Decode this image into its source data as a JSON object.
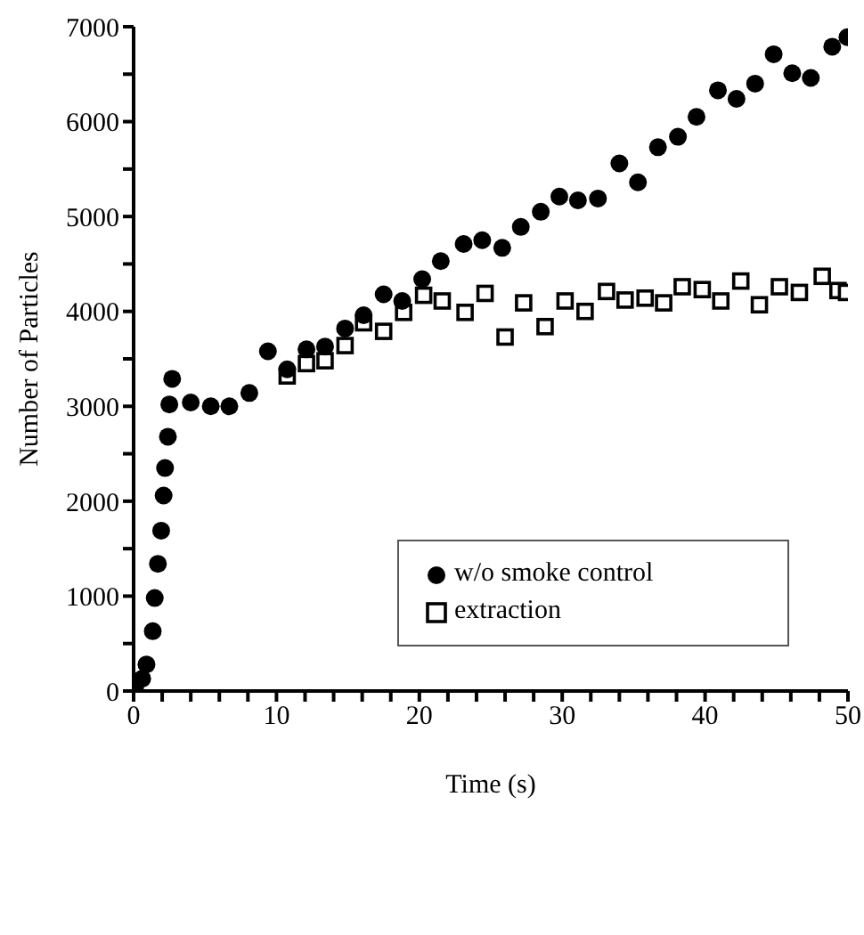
{
  "chart_data": {
    "type": "scatter",
    "xlabel": "Time (s)",
    "ylabel": "Number of Particles",
    "xlim": [
      0,
      50
    ],
    "ylim": [
      0,
      7000
    ],
    "xticks": [
      0,
      {
        "value": 2,
        "label": null
      },
      {
        "value": 4,
        "label": null
      },
      {
        "value": 6,
        "label": null
      },
      {
        "value": 8,
        "label": null
      },
      10,
      {
        "value": 12,
        "label": null
      },
      {
        "value": 14,
        "label": null
      },
      {
        "value": 16,
        "label": null
      },
      {
        "value": 18,
        "label": null
      },
      20,
      {
        "value": 22,
        "label": null
      },
      {
        "value": 24,
        "label": null
      },
      {
        "value": 26,
        "label": null
      },
      {
        "value": 28,
        "label": null
      },
      30,
      {
        "value": 32,
        "label": null
      },
      {
        "value": 34,
        "label": null
      },
      {
        "value": 36,
        "label": null
      },
      {
        "value": 38,
        "label": null
      },
      40,
      {
        "value": 42,
        "label": null
      },
      {
        "value": 44,
        "label": null
      },
      {
        "value": 46,
        "label": null
      },
      {
        "value": 48,
        "label": null
      },
      50
    ],
    "yticks": [
      0,
      {
        "value": 500,
        "label": null
      },
      1000,
      {
        "value": 1500,
        "label": null
      },
      2000,
      {
        "value": 2500,
        "label": null
      },
      3000,
      {
        "value": 3500,
        "label": null
      },
      4000,
      {
        "value": 4500,
        "label": null
      },
      5000,
      {
        "value": 5500,
        "label": null
      },
      6000,
      {
        "value": 6500,
        "label": null
      },
      7000
    ],
    "grid": false,
    "legend": "right",
    "series": [
      {
        "name": "w/o smoke control",
        "color": "#000000",
        "marker": "circle",
        "x": [
          0.1,
          0.6,
          0.9,
          1.34,
          1.48,
          1.7,
          1.93,
          2.1,
          2.2,
          2.4,
          2.5,
          2.7,
          4.0,
          5.4,
          6.7,
          8.1,
          9.4,
          10.75,
          12.1,
          13.4,
          14.8,
          16.1,
          17.5,
          18.8,
          20.2,
          21.5,
          23.1,
          24.4,
          25.8,
          27.1,
          28.5,
          29.8,
          31.1,
          32.5,
          34.0,
          35.3,
          36.7,
          38.1,
          39.4,
          40.9,
          42.2,
          43.5,
          44.8,
          46.1,
          47.4,
          48.9,
          49.96
        ],
        "values": [
          40,
          130,
          280,
          630,
          980,
          1340,
          1690,
          2060,
          2350,
          2680,
          3020,
          3290,
          3040,
          3000,
          3000,
          3140,
          3580,
          3390,
          3600,
          3630,
          3820,
          3960,
          4180,
          4110,
          4340,
          4530,
          4710,
          4750,
          4670,
          4890,
          5050,
          5210,
          5170,
          5190,
          5560,
          5360,
          5730,
          5840,
          6050,
          6330,
          6240,
          6400,
          6710,
          6510,
          6460,
          6790,
          6890
        ]
      },
      {
        "name": "extraction",
        "color": "#000000",
        "marker": "square",
        "x": [
          10.75,
          12.1,
          13.4,
          14.8,
          16.1,
          17.5,
          18.9,
          20.3,
          21.6,
          23.2,
          24.6,
          26.0,
          27.3,
          28.8,
          30.2,
          31.6,
          33.1,
          34.4,
          35.8,
          37.1,
          38.4,
          39.8,
          41.1,
          42.5,
          43.8,
          45.2,
          46.6,
          48.2,
          49.3,
          49.9
        ],
        "values": [
          3320,
          3450,
          3480,
          3640,
          3880,
          3790,
          3990,
          4170,
          4110,
          3990,
          4190,
          3730,
          4090,
          3840,
          4110,
          4000,
          4210,
          4120,
          4140,
          4090,
          4260,
          4230,
          4110,
          4320,
          4070,
          4260,
          4200,
          4370,
          4220,
          4200
        ]
      }
    ]
  }
}
